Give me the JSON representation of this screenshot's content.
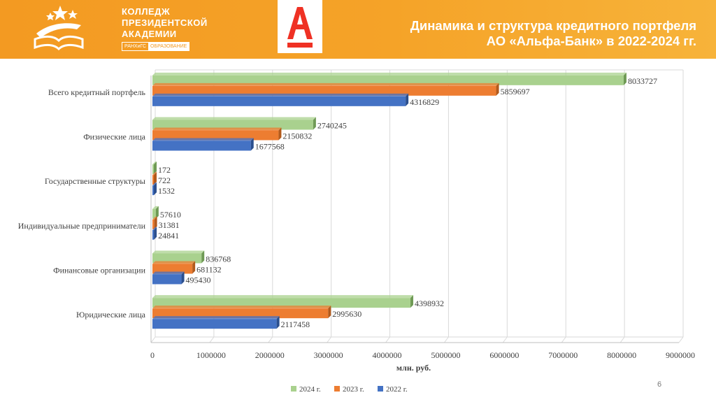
{
  "header": {
    "logo": {
      "lines": [
        "КОЛЛЕДЖ",
        "ПРЕЗИДЕНТСКОЙ",
        "АКАДЕМИИ"
      ],
      "sub_left": "РАНХиГС",
      "sub_right": "ОБРАЗОВАНИЕ",
      "icon": "book-stars-logo"
    },
    "bank_logo": {
      "icon": "alfa-bank-logo",
      "color": "#ef3124"
    },
    "title_line1": "Динамика и структура кредитного портфеля",
    "title_line2": "АО «Альфа-Банк» в 2022-2024 гг."
  },
  "colors": {
    "header": "#f39a22",
    "series": [
      "#a9d18e",
      "#ed7d31",
      "#4472c4"
    ],
    "series_dark": [
      "#6f9a55",
      "#b25a1c",
      "#2b4f8e"
    ]
  },
  "chart_data": {
    "type": "bar",
    "orientation": "horizontal",
    "categories": [
      "Всего кредитный портфель",
      "Физические лица",
      "Государственные структуры",
      "Индивидуальные предприниматели",
      "Финансовые организации",
      "Юридические лица"
    ],
    "series": [
      {
        "name": "2024 г.",
        "values": [
          8033727,
          2740245,
          172,
          57610,
          836768,
          4398932
        ]
      },
      {
        "name": "2023 г.",
        "values": [
          5859697,
          2150832,
          722,
          31381,
          681132,
          2995630
        ]
      },
      {
        "name": "2022 г.",
        "values": [
          4316829,
          1677568,
          1532,
          24841,
          495430,
          2117458
        ]
      }
    ],
    "xlabel": "млн. руб.",
    "xlim": [
      0,
      9000000
    ],
    "xticks": [
      "0",
      "1000000",
      "2000000",
      "3000000",
      "4000000",
      "5000000",
      "6000000",
      "7000000",
      "8000000",
      "9000000"
    ],
    "grid": true,
    "legend_position": "bottom"
  },
  "footer": {
    "page_number": "6"
  }
}
